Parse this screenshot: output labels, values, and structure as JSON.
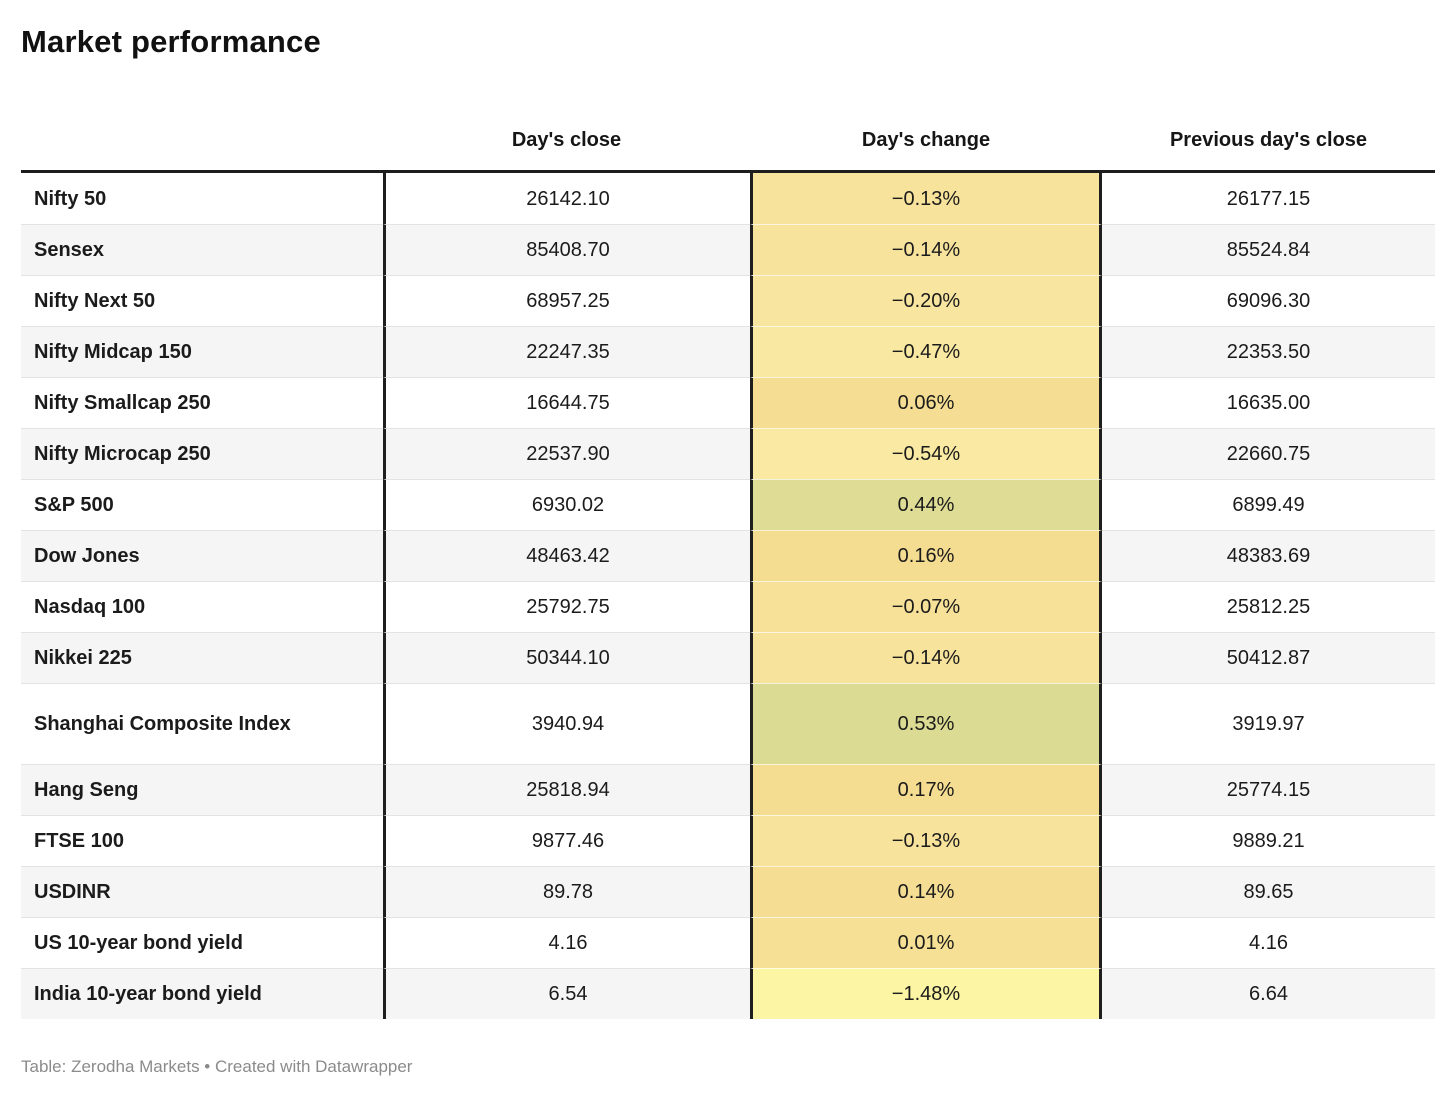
{
  "title": "Market performance",
  "table": {
    "columns": [
      "Day's close",
      "Day's change",
      "Previous day's close"
    ],
    "rows": [
      {
        "label": "Nifty 50",
        "close": "26142.10",
        "change": "−0.13%",
        "change_color": "#F8E39C",
        "prev": "26177.15"
      },
      {
        "label": "Sensex",
        "close": "85408.70",
        "change": "−0.14%",
        "change_color": "#F8E39C",
        "prev": "85524.84"
      },
      {
        "label": "Nifty Next 50",
        "close": "68957.25",
        "change": "−0.20%",
        "change_color": "#F8E59F",
        "prev": "69096.30"
      },
      {
        "label": "Nifty Midcap 150",
        "close": "22247.35",
        "change": "−0.47%",
        "change_color": "#F9E8A1",
        "prev": "22353.50"
      },
      {
        "label": "Nifty Smallcap 250",
        "close": "16644.75",
        "change": "0.06%",
        "change_color": "#F5DE93",
        "prev": "16635.00"
      },
      {
        "label": "Nifty Microcap 250",
        "close": "22537.90",
        "change": "−0.54%",
        "change_color": "#F9E9A2",
        "prev": "22660.75"
      },
      {
        "label": "S&P 500",
        "close": "6930.02",
        "change": "0.44%",
        "change_color": "#DFDC95",
        "prev": "6899.49"
      },
      {
        "label": "Dow Jones",
        "close": "48463.42",
        "change": "0.16%",
        "change_color": "#F4DC91",
        "prev": "48383.69"
      },
      {
        "label": "Nasdaq 100",
        "close": "25792.75",
        "change": "−0.07%",
        "change_color": "#F7E199",
        "prev": "25812.25"
      },
      {
        "label": "Nikkei 225",
        "close": "50344.10",
        "change": "−0.14%",
        "change_color": "#F8E39C",
        "prev": "50412.87"
      },
      {
        "label": "Shanghai Composite Index",
        "close": "3940.94",
        "change": "0.53%",
        "change_color": "#DBDB93",
        "prev": "3919.97"
      },
      {
        "label": "Hang Seng",
        "close": "25818.94",
        "change": "0.17%",
        "change_color": "#F4DC91",
        "prev": "25774.15"
      },
      {
        "label": "FTSE 100",
        "close": "9877.46",
        "change": "−0.13%",
        "change_color": "#F8E39C",
        "prev": "9889.21"
      },
      {
        "label": "USDINR",
        "close": "89.78",
        "change": "0.14%",
        "change_color": "#F5DD93",
        "prev": "89.65"
      },
      {
        "label": "US 10-year bond yield",
        "close": "4.16",
        "change": "0.01%",
        "change_color": "#F6E096",
        "prev": "4.16"
      },
      {
        "label": "India 10-year bond yield",
        "close": "6.54",
        "change": "−1.48%",
        "change_color": "#FBF5A4",
        "prev": "6.64"
      }
    ]
  },
  "footer": "Table: Zerodha Markets • Created with Datawrapper",
  "colors": {
    "rule": "#1d1d1d",
    "row_alt": "#f5f5f5",
    "separator": "#e3e3e3",
    "footer_text": "#8b8b8b"
  }
}
